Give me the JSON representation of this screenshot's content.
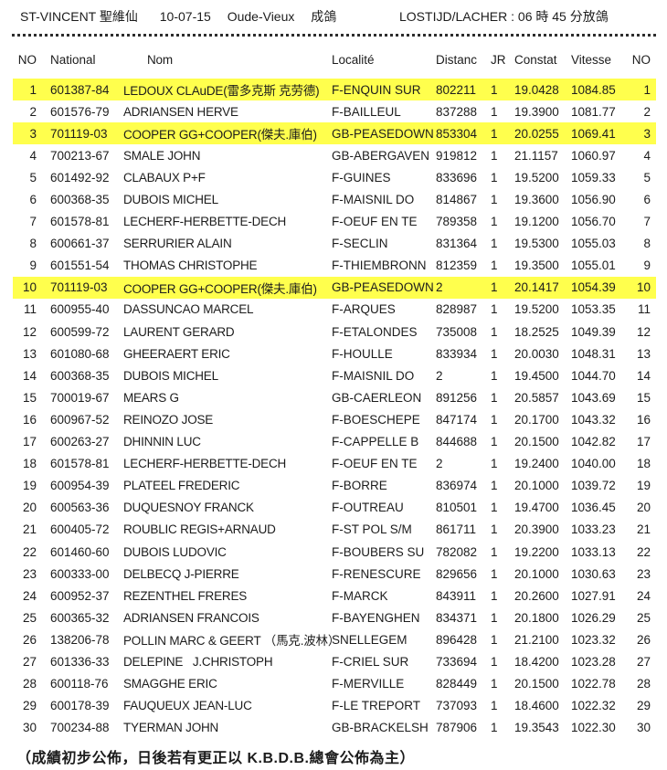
{
  "header": {
    "race": "ST-VINCENT 聖維仙",
    "date": "10-07-15",
    "category": "Oude-Vieux",
    "category_cn": "成鴿",
    "release_info": "LOSTIJD/LACHER : 06 時 45 分放鴿"
  },
  "table": {
    "columns": [
      "NO",
      "National",
      "Nom",
      "Localité",
      "Distanc",
      "JR",
      "Constat",
      "Vitesse",
      "NO"
    ],
    "rows": [
      {
        "no": "1",
        "national": "601387-84",
        "nom": "LEDOUX CLAuDE(雷多克斯 克劳德)",
        "localite": "F-ENQUIN SUR",
        "distanc": "802211",
        "jr": "1",
        "constat": "19.0428",
        "vitesse": "1084.85",
        "hl": true
      },
      {
        "no": "2",
        "national": "601576-79",
        "nom": "ADRIANSEN HERVE",
        "localite": "F-BAILLEUL",
        "distanc": "837288",
        "jr": "1",
        "constat": "19.3900",
        "vitesse": "1081.77",
        "hl": false
      },
      {
        "no": "3",
        "national": "701119-03",
        "nom": "COOPER GG+COOPER(傑夫.庫伯)",
        "localite": "GB-PEASEDOWN",
        "distanc": "853304",
        "jr": "1",
        "constat": "20.0255",
        "vitesse": "1069.41",
        "hl": true
      },
      {
        "no": "4",
        "national": "700213-67",
        "nom": "SMALE JOHN",
        "localite": "GB-ABERGAVEN",
        "distanc": "919812",
        "jr": "1",
        "constat": "21.1157",
        "vitesse": "1060.97",
        "hl": false
      },
      {
        "no": "5",
        "national": "601492-92",
        "nom": "CLABAUX P+F",
        "localite": "F-GUINES",
        "distanc": "833696",
        "jr": "1",
        "constat": "19.5200",
        "vitesse": "1059.33",
        "hl": false
      },
      {
        "no": "6",
        "national": "600368-35",
        "nom": "DUBOIS MICHEL",
        "localite": "F-MAISNIL DO",
        "distanc": "814867",
        "jr": "1",
        "constat": "19.3600",
        "vitesse": "1056.90",
        "hl": false
      },
      {
        "no": "7",
        "national": "601578-81",
        "nom": "LECHERF-HERBETTE-DECH",
        "localite": "F-OEUF EN TE",
        "distanc": "789358",
        "jr": "1",
        "constat": "19.1200",
        "vitesse": "1056.70",
        "hl": false
      },
      {
        "no": "8",
        "national": "600661-37",
        "nom": "SERRURIER ALAIN",
        "localite": "F-SECLIN",
        "distanc": "831364",
        "jr": "1",
        "constat": "19.5300",
        "vitesse": "1055.03",
        "hl": false
      },
      {
        "no": "9",
        "national": "601551-54",
        "nom": "THOMAS CHRISTOPHE",
        "localite": "F-THIEMBRONN",
        "distanc": "812359",
        "jr": "1",
        "constat": "19.3500",
        "vitesse": "1055.01",
        "hl": false
      },
      {
        "no": "10",
        "national": "701119-03",
        "nom": "COOPER GG+COOPER(傑夫.庫伯)",
        "localite": "GB-PEASEDOWN",
        "distanc": "2",
        "jr": "1",
        "constat": "20.1417",
        "vitesse": "1054.39",
        "hl": true
      },
      {
        "no": "11",
        "national": "600955-40",
        "nom": "DASSUNCAO MARCEL",
        "localite": "F-ARQUES",
        "distanc": "828987",
        "jr": "1",
        "constat": "19.5200",
        "vitesse": "1053.35",
        "hl": false
      },
      {
        "no": "12",
        "national": "600599-72",
        "nom": "LAURENT GERARD",
        "localite": "F-ETALONDES",
        "distanc": "735008",
        "jr": "1",
        "constat": "18.2525",
        "vitesse": "1049.39",
        "hl": false
      },
      {
        "no": "13",
        "national": "601080-68",
        "nom": "GHEERAERT ERIC",
        "localite": "F-HOULLE",
        "distanc": "833934",
        "jr": "1",
        "constat": "20.0030",
        "vitesse": "1048.31",
        "hl": false
      },
      {
        "no": "14",
        "national": "600368-35",
        "nom": "DUBOIS MICHEL",
        "localite": "F-MAISNIL DO",
        "distanc": "2",
        "jr": "1",
        "constat": "19.4500",
        "vitesse": "1044.70",
        "hl": false
      },
      {
        "no": "15",
        "national": "700019-67",
        "nom": "MEARS G",
        "localite": "GB-CAERLEON",
        "distanc": "891256",
        "jr": "1",
        "constat": "20.5857",
        "vitesse": "1043.69",
        "hl": false
      },
      {
        "no": "16",
        "national": "600967-52",
        "nom": "REINOZO JOSE",
        "localite": "F-BOESCHEPE",
        "distanc": "847174",
        "jr": "1",
        "constat": "20.1700",
        "vitesse": "1043.32",
        "hl": false
      },
      {
        "no": "17",
        "national": "600263-27",
        "nom": "DHINNIN LUC",
        "localite": "F-CAPPELLE B",
        "distanc": "844688",
        "jr": "1",
        "constat": "20.1500",
        "vitesse": "1042.82",
        "hl": false
      },
      {
        "no": "18",
        "national": "601578-81",
        "nom": "LECHERF-HERBETTE-DECH",
        "localite": "F-OEUF EN TE",
        "distanc": "2",
        "jr": "1",
        "constat": "19.2400",
        "vitesse": "1040.00",
        "hl": false
      },
      {
        "no": "19",
        "national": "600954-39",
        "nom": "PLATEEL FREDERIC",
        "localite": "F-BORRE",
        "distanc": "836974",
        "jr": "1",
        "constat": "20.1000",
        "vitesse": "1039.72",
        "hl": false
      },
      {
        "no": "20",
        "national": "600563-36",
        "nom": "DUQUESNOY FRANCK",
        "localite": "F-OUTREAU",
        "distanc": "810501",
        "jr": "1",
        "constat": "19.4700",
        "vitesse": "1036.45",
        "hl": false
      },
      {
        "no": "21",
        "national": "600405-72",
        "nom": "ROUBLIC REGIS+ARNAUD",
        "localite": "F-ST POL S/M",
        "distanc": "861711",
        "jr": "1",
        "constat": "20.3900",
        "vitesse": "1033.23",
        "hl": false
      },
      {
        "no": "22",
        "national": "601460-60",
        "nom": "DUBOIS LUDOVIC",
        "localite": "F-BOUBERS SU",
        "distanc": "782082",
        "jr": "1",
        "constat": "19.2200",
        "vitesse": "1033.13",
        "hl": false
      },
      {
        "no": "23",
        "national": "600333-00",
        "nom": "DELBECQ J-PIERRE",
        "localite": "F-RENESCURE",
        "distanc": "829656",
        "jr": "1",
        "constat": "20.1000",
        "vitesse": "1030.63",
        "hl": false
      },
      {
        "no": "24",
        "national": "600952-37",
        "nom": "REZENTHEL FRERES",
        "localite": "F-MARCK",
        "distanc": "843911",
        "jr": "1",
        "constat": "20.2600",
        "vitesse": "1027.91",
        "hl": false
      },
      {
        "no": "25",
        "national": "600365-32",
        "nom": "ADRIANSEN FRANCOIS",
        "localite": "F-BAYENGHEN",
        "distanc": "834371",
        "jr": "1",
        "constat": "20.1800",
        "vitesse": "1026.29",
        "hl": false
      },
      {
        "no": "26",
        "national": "138206-78",
        "nom": "POLLIN MARC & GEERT （馬克.波林）",
        "localite": "SNELLEGEM",
        "distanc": "896428",
        "jr": "1",
        "constat": "21.2100",
        "vitesse": "1023.32",
        "hl": false
      },
      {
        "no": "27",
        "national": "601336-33",
        "nom": "DELEPINE   J.CHRISTOPH",
        "localite": "F-CRIEL SUR",
        "distanc": "733694",
        "jr": "1",
        "constat": "18.4200",
        "vitesse": "1023.28",
        "hl": false
      },
      {
        "no": "28",
        "national": "600118-76",
        "nom": "SMAGGHE ERIC",
        "localite": "F-MERVILLE",
        "distanc": "828449",
        "jr": "1",
        "constat": "20.1500",
        "vitesse": "1022.78",
        "hl": false
      },
      {
        "no": "29",
        "national": "600178-39",
        "nom": "FAUQUEUX JEAN-LUC",
        "localite": "F-LE TREPORT",
        "distanc": "737093",
        "jr": "1",
        "constat": "18.4600",
        "vitesse": "1022.32",
        "hl": false
      },
      {
        "no": "30",
        "national": "700234-88",
        "nom": "TYERMAN JOHN",
        "localite": "GB-BRACKELSH",
        "distanc": "787906",
        "jr": "1",
        "constat": "19.3543",
        "vitesse": "1022.30",
        "hl": false
      }
    ]
  },
  "footer": {
    "note": "（成績初步公佈，日後若有更正以 K.B.D.B.總會公佈為主）"
  },
  "colors": {
    "highlight": "#ffff4d",
    "text": "#1c1c1c"
  }
}
